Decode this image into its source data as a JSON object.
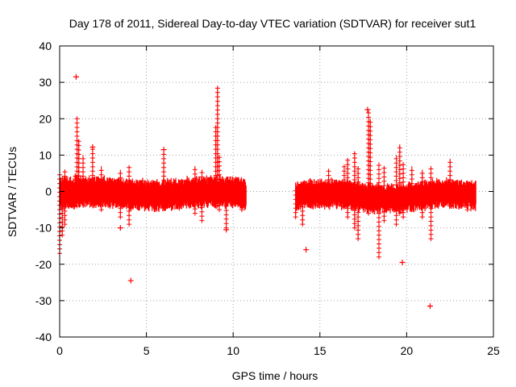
{
  "colors": {
    "series": "#ff0000",
    "grid": "#a0a0a0",
    "axis": "#000000",
    "background": "#ffffff"
  },
  "chart_data": {
    "type": "scatter",
    "title": "Day 178 of 2011, Sidereal Day-to-day VTEC variation (SDTVAR) for receiver sut1",
    "xlabel": "GPS time / hours",
    "ylabel": "SDTVAR / TECUs",
    "xlim": [
      0,
      25
    ],
    "ylim": [
      -40,
      40
    ],
    "xticks": [
      0,
      5,
      10,
      15,
      20,
      25
    ],
    "yticks": [
      -40,
      -30,
      -20,
      -10,
      0,
      10,
      20,
      30,
      40
    ],
    "grid": true,
    "marker": "plus",
    "series": [
      {
        "name": "sut1",
        "segments": [
          {
            "x_range": [
              0.0,
              10.75
            ],
            "center_range": [
              -0.5,
              0.5
            ],
            "band_low": -4,
            "band_high": 4
          },
          {
            "x_range": [
              13.6,
              24.0
            ],
            "center_range": [
              -1.0,
              0.5
            ],
            "band_low": -4,
            "band_high": 3.5
          }
        ],
        "spikes": [
          {
            "x": 0.0,
            "low": -17,
            "high": 5
          },
          {
            "x": 0.15,
            "low": -12,
            "high": 4
          },
          {
            "x": 0.3,
            "low": -9,
            "high": 6
          },
          {
            "x": 0.9,
            "low": -3,
            "high": 5
          },
          {
            "x": 1.0,
            "low": -4,
            "high": 20
          },
          {
            "x": 1.1,
            "low": -3,
            "high": 14
          },
          {
            "x": 1.35,
            "low": -3,
            "high": 10
          },
          {
            "x": 1.9,
            "low": -4,
            "high": 12
          },
          {
            "x": 2.4,
            "low": -5,
            "high": 7
          },
          {
            "x": 3.5,
            "low": -7,
            "high": 6
          },
          {
            "x": 4.0,
            "low": -9,
            "high": 7
          },
          {
            "x": 6.0,
            "low": -3,
            "high": 11
          },
          {
            "x": 7.8,
            "low": -6,
            "high": 7
          },
          {
            "x": 8.2,
            "low": -8,
            "high": 6
          },
          {
            "x": 9.0,
            "low": -4,
            "high": 18
          },
          {
            "x": 9.1,
            "low": -4,
            "high": 29
          },
          {
            "x": 9.2,
            "low": -5,
            "high": 10
          },
          {
            "x": 9.6,
            "low": -10,
            "high": 3
          },
          {
            "x": 10.5,
            "low": -5,
            "high": 2
          },
          {
            "x": 13.6,
            "low": -7,
            "high": 1
          },
          {
            "x": 14.0,
            "low": -9,
            "high": 2
          },
          {
            "x": 15.5,
            "low": -4,
            "high": 6
          },
          {
            "x": 16.4,
            "low": -4,
            "high": 7
          },
          {
            "x": 16.6,
            "low": -7,
            "high": 9
          },
          {
            "x": 17.0,
            "low": -10,
            "high": 11
          },
          {
            "x": 17.2,
            "low": -13,
            "high": 7
          },
          {
            "x": 17.8,
            "low": -6,
            "high": 22
          },
          {
            "x": 17.9,
            "low": -5,
            "high": 20
          },
          {
            "x": 18.4,
            "low": -18,
            "high": 8
          },
          {
            "x": 18.7,
            "low": -8,
            "high": 7
          },
          {
            "x": 19.4,
            "low": -9,
            "high": 10
          },
          {
            "x": 19.6,
            "low": -6,
            "high": 13
          },
          {
            "x": 19.8,
            "low": -7,
            "high": 8
          },
          {
            "x": 20.3,
            "low": -5,
            "high": 7
          },
          {
            "x": 20.9,
            "low": -7,
            "high": 6
          },
          {
            "x": 21.4,
            "low": -13,
            "high": 7
          },
          {
            "x": 22.5,
            "low": -4,
            "high": 9
          },
          {
            "x": 23.5,
            "low": -5,
            "high": 3
          }
        ],
        "outliers": [
          {
            "x": 0.95,
            "y": 31.5
          },
          {
            "x": 4.1,
            "y": -24.5
          },
          {
            "x": 3.5,
            "y": -10
          },
          {
            "x": 9.6,
            "y": -10.5
          },
          {
            "x": 14.2,
            "y": -16
          },
          {
            "x": 19.75,
            "y": -19.5
          },
          {
            "x": 21.35,
            "y": -31.5
          },
          {
            "x": 6.0,
            "y": 11.5
          },
          {
            "x": 1.9,
            "y": 12.2
          },
          {
            "x": 17.75,
            "y": 22.5
          }
        ]
      }
    ]
  }
}
